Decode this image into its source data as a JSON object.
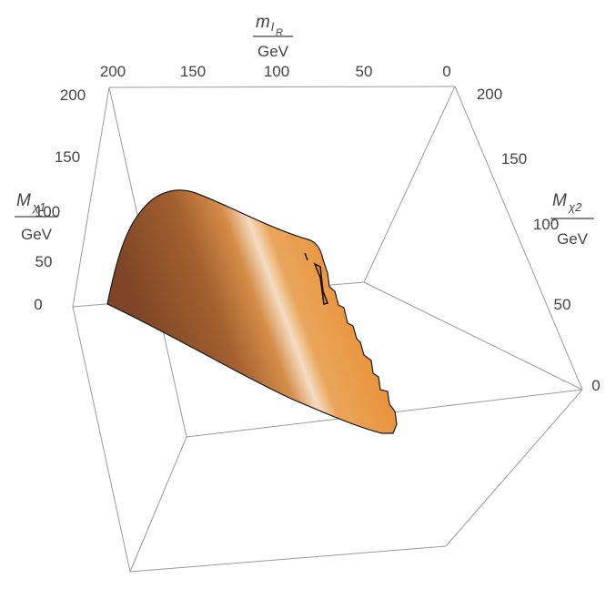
{
  "chart_data": {
    "type": "surface3d",
    "title": "",
    "axes": {
      "x": {
        "symbol": "m",
        "subscript": "l",
        "subsubscript": "R",
        "unit": "GeV",
        "ticks": [
          "200",
          "150",
          "100",
          "50",
          "0"
        ],
        "range": [
          0,
          200
        ]
      },
      "y": {
        "symbol": "M",
        "subscript": "χ1",
        "unit": "GeV",
        "ticks": [
          "200",
          "150",
          "100",
          "50",
          "0"
        ],
        "range": [
          0,
          200
        ]
      },
      "z": {
        "symbol": "M",
        "subscript": "χ2",
        "unit": "GeV",
        "ticks": [
          "200",
          "150",
          "100",
          "50",
          "0"
        ],
        "range": [
          0,
          200
        ]
      }
    },
    "surface": {
      "color_base": "#9a5a30",
      "color_highlight": "#f6d8b4",
      "color_light": "#e8963f",
      "edge_color": "#1a1a1a"
    },
    "box": {
      "edge_color": "#9a9a9a"
    }
  }
}
